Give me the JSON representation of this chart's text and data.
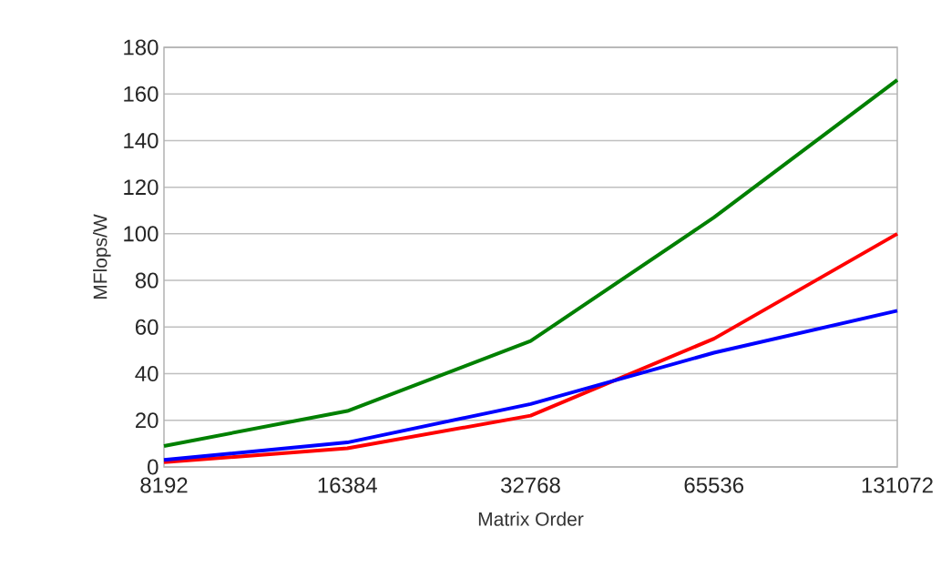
{
  "chart_data": {
    "type": "line",
    "xlabel": "Matrix Order",
    "ylabel": "MFlops/W",
    "categories": [
      "8192",
      "16384",
      "32768",
      "65536",
      "131072"
    ],
    "series": [
      {
        "color": "#008000",
        "values": [
          9,
          24,
          54,
          107,
          166
        ]
      },
      {
        "color": "#ff0000",
        "values": [
          2,
          8,
          22,
          55,
          100
        ]
      },
      {
        "color": "#0000ff",
        "values": [
          3,
          10.5,
          27,
          49,
          67
        ]
      }
    ],
    "ylim": [
      0,
      180
    ],
    "yticks": [
      0,
      20,
      40,
      60,
      80,
      100,
      120,
      140,
      160,
      180
    ],
    "grid": "y",
    "marker": "none",
    "line_style": "solid"
  }
}
